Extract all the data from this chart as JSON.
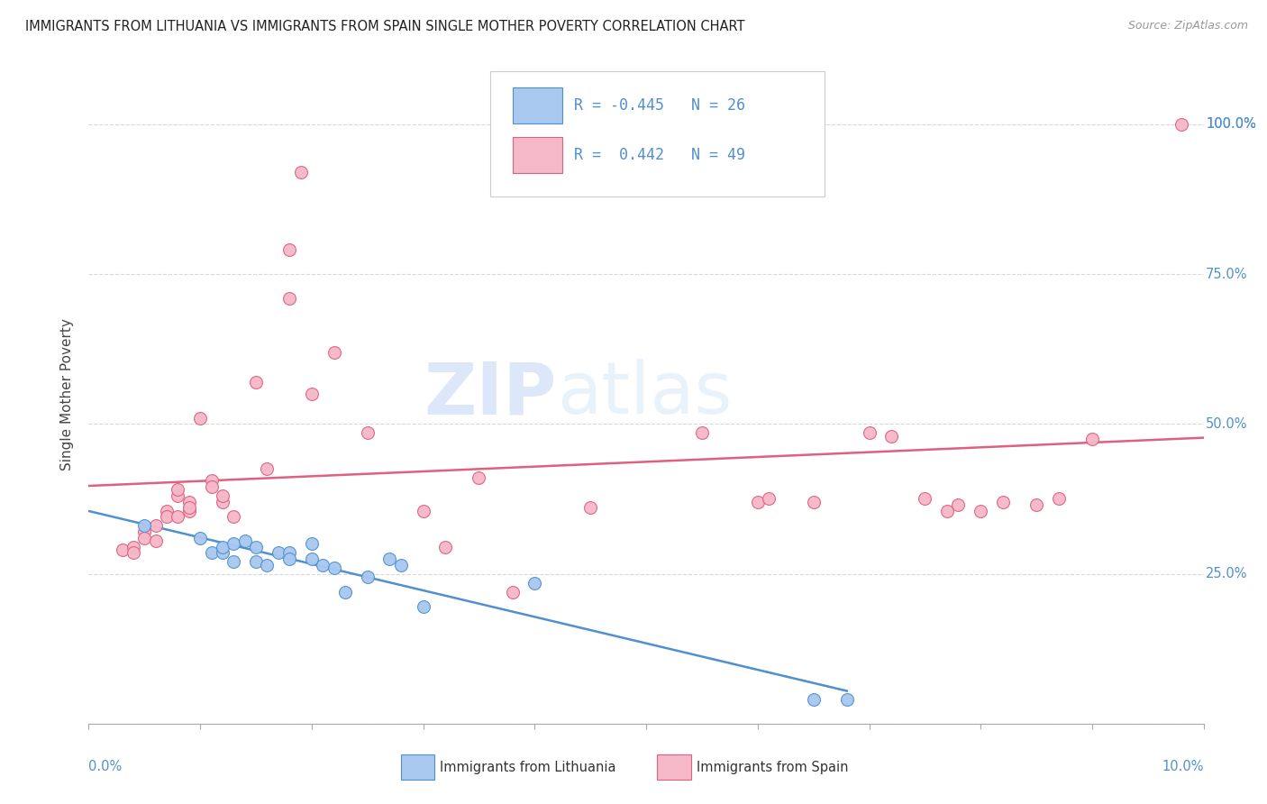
{
  "title": "IMMIGRANTS FROM LITHUANIA VS IMMIGRANTS FROM SPAIN SINGLE MOTHER POVERTY CORRELATION CHART",
  "source": "Source: ZipAtlas.com",
  "ylabel": "Single Mother Poverty",
  "legend_blue_r": "-0.445",
  "legend_blue_n": "26",
  "legend_pink_r": "0.442",
  "legend_pink_n": "49",
  "legend_blue_label": "Immigrants from Lithuania",
  "legend_pink_label": "Immigrants from Spain",
  "watermark_zip": "ZIP",
  "watermark_atlas": "atlas",
  "blue_color": "#a8c8f0",
  "pink_color": "#f5b8c8",
  "blue_edge_color": "#5090d0",
  "pink_edge_color": "#e06080",
  "blue_line_color": "#5090d0",
  "pink_line_color": "#e06080",
  "blue_scatter": [
    [
      0.5,
      33.0
    ],
    [
      1.0,
      31.0
    ],
    [
      1.1,
      28.5
    ],
    [
      1.2,
      28.5
    ],
    [
      1.2,
      29.5
    ],
    [
      1.3,
      27.0
    ],
    [
      1.3,
      30.0
    ],
    [
      1.4,
      30.5
    ],
    [
      1.5,
      29.5
    ],
    [
      1.5,
      27.0
    ],
    [
      1.6,
      26.5
    ],
    [
      1.7,
      28.5
    ],
    [
      1.8,
      28.5
    ],
    [
      1.8,
      27.5
    ],
    [
      2.0,
      27.5
    ],
    [
      2.0,
      30.0
    ],
    [
      2.1,
      26.5
    ],
    [
      2.2,
      26.0
    ],
    [
      2.3,
      22.0
    ],
    [
      2.5,
      24.5
    ],
    [
      2.7,
      27.5
    ],
    [
      2.8,
      26.5
    ],
    [
      3.0,
      19.5
    ],
    [
      4.0,
      23.5
    ],
    [
      6.5,
      4.0
    ],
    [
      6.8,
      4.0
    ]
  ],
  "pink_scatter": [
    [
      0.3,
      29.0
    ],
    [
      0.4,
      29.5
    ],
    [
      0.4,
      28.5
    ],
    [
      0.5,
      32.0
    ],
    [
      0.5,
      31.0
    ],
    [
      0.6,
      33.0
    ],
    [
      0.6,
      30.5
    ],
    [
      0.7,
      35.5
    ],
    [
      0.7,
      34.5
    ],
    [
      0.8,
      38.0
    ],
    [
      0.8,
      39.0
    ],
    [
      0.8,
      34.5
    ],
    [
      0.9,
      35.5
    ],
    [
      0.9,
      37.0
    ],
    [
      0.9,
      36.0
    ],
    [
      1.0,
      51.0
    ],
    [
      1.1,
      40.5
    ],
    [
      1.1,
      39.5
    ],
    [
      1.2,
      37.0
    ],
    [
      1.2,
      38.0
    ],
    [
      1.3,
      34.5
    ],
    [
      1.5,
      57.0
    ],
    [
      1.6,
      42.5
    ],
    [
      1.8,
      71.0
    ],
    [
      1.8,
      79.0
    ],
    [
      1.9,
      92.0
    ],
    [
      2.0,
      55.0
    ],
    [
      2.2,
      62.0
    ],
    [
      2.5,
      48.5
    ],
    [
      3.0,
      35.5
    ],
    [
      3.2,
      29.5
    ],
    [
      3.5,
      41.0
    ],
    [
      3.8,
      22.0
    ],
    [
      4.5,
      36.0
    ],
    [
      5.5,
      48.5
    ],
    [
      6.0,
      37.0
    ],
    [
      6.1,
      37.5
    ],
    [
      6.5,
      37.0
    ],
    [
      7.0,
      48.5
    ],
    [
      7.2,
      48.0
    ],
    [
      7.5,
      37.5
    ],
    [
      7.7,
      35.5
    ],
    [
      7.8,
      36.5
    ],
    [
      8.0,
      35.5
    ],
    [
      8.2,
      37.0
    ],
    [
      8.5,
      36.5
    ],
    [
      8.7,
      37.5
    ],
    [
      9.0,
      47.5
    ],
    [
      9.8,
      100.0
    ]
  ],
  "xlim": [
    0.0,
    10.0
  ],
  "ylim": [
    0.0,
    110.0
  ],
  "xtick_positions": [
    0.0,
    1.0,
    2.0,
    3.0,
    4.0,
    5.0,
    6.0,
    7.0,
    8.0,
    9.0,
    10.0
  ],
  "ytick_positions": [
    0.0,
    25.0,
    50.0,
    75.0,
    100.0
  ],
  "background_color": "#ffffff",
  "grid_color": "#d8d8d8"
}
